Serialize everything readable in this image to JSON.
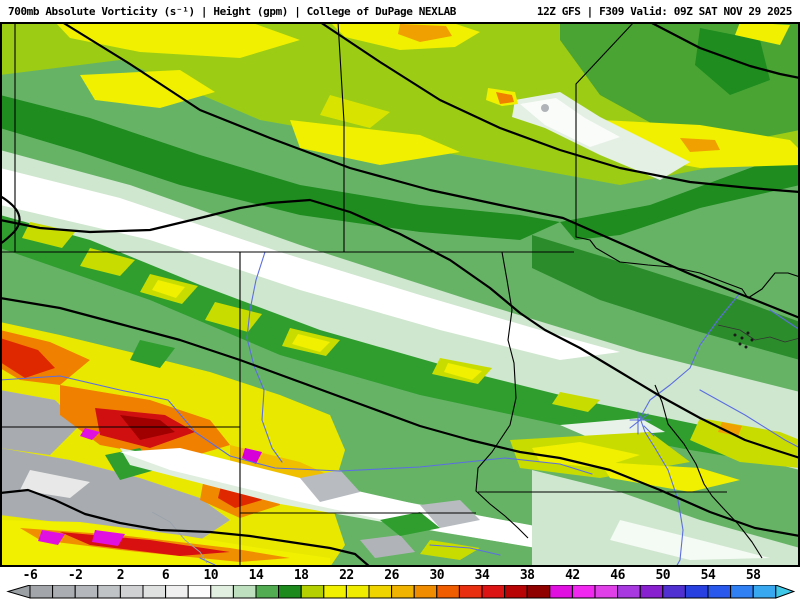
{
  "header": {
    "left_title": "700mb Absolute Vorticity (s⁻¹) | Height (gpm) | College of DuPage NEXLAB",
    "right_title": "12Z GFS | F309 Valid: 09Z SAT NOV 29 2025",
    "parameter": "700mb Absolute Vorticity (s⁻¹)",
    "overlay": "Height (gpm)",
    "source": "College of DuPage NEXLAB",
    "run": "12Z",
    "model": "GFS",
    "forecast_hour": "F309",
    "valid_time": "09Z SAT NOV 29 2025"
  },
  "colorbar": {
    "tick_labels": [
      "-6",
      "-2",
      "2",
      "6",
      "10",
      "14",
      "18",
      "22",
      "26",
      "30",
      "34",
      "38",
      "42",
      "46",
      "50",
      "54",
      "58"
    ],
    "tick_values": [
      -6,
      -2,
      2,
      6,
      10,
      14,
      18,
      22,
      26,
      30,
      34,
      38,
      42,
      46,
      50,
      54,
      58
    ],
    "left_arrow_color": "#9aa0a4",
    "right_arrow_color": "#40c8e8",
    "cells": [
      {
        "from": -6,
        "to": -4,
        "color": "#a2a6aa"
      },
      {
        "from": -4,
        "to": -2,
        "color": "#aaaeb2"
      },
      {
        "from": -2,
        "to": 0,
        "color": "#b4b8bc"
      },
      {
        "from": 0,
        "to": 2,
        "color": "#c0c3c6"
      },
      {
        "from": 2,
        "to": 4,
        "color": "#cfd1d3"
      },
      {
        "from": 4,
        "to": 6,
        "color": "#dfe1e1"
      },
      {
        "from": 6,
        "to": 8,
        "color": "#efefef"
      },
      {
        "from": 8,
        "to": 10,
        "color": "#fcfcfc"
      },
      {
        "from": 10,
        "to": 12,
        "color": "#e0efe0"
      },
      {
        "from": 12,
        "to": 14,
        "color": "#bfe0bf"
      },
      {
        "from": 14,
        "to": 16,
        "color": "#52ac52"
      },
      {
        "from": 16,
        "to": 18,
        "color": "#1d8a1d"
      },
      {
        "from": 18,
        "to": 20,
        "color": "#b5d000"
      },
      {
        "from": 20,
        "to": 22,
        "color": "#f0f000"
      },
      {
        "from": 22,
        "to": 24,
        "color": "#f0ec00"
      },
      {
        "from": 24,
        "to": 26,
        "color": "#f0d400"
      },
      {
        "from": 26,
        "to": 28,
        "color": "#f0b400"
      },
      {
        "from": 28,
        "to": 30,
        "color": "#f08c00"
      },
      {
        "from": 30,
        "to": 32,
        "color": "#f05c00"
      },
      {
        "from": 32,
        "to": 34,
        "color": "#e83010"
      },
      {
        "from": 34,
        "to": 36,
        "color": "#dc1414"
      },
      {
        "from": 36,
        "to": 38,
        "color": "#b80404"
      },
      {
        "from": 38,
        "to": 40,
        "color": "#8f0000"
      },
      {
        "from": 40,
        "to": 42,
        "color": "#e010e0"
      },
      {
        "from": 42,
        "to": 44,
        "color": "#f028f0"
      },
      {
        "from": 44,
        "to": 46,
        "color": "#e040e8"
      },
      {
        "from": 46,
        "to": 48,
        "color": "#a838e0"
      },
      {
        "from": 48,
        "to": 50,
        "color": "#8820d0"
      },
      {
        "from": 50,
        "to": 52,
        "color": "#5030d0"
      },
      {
        "from": 52,
        "to": 54,
        "color": "#2840e0"
      },
      {
        "from": 54,
        "to": 56,
        "color": "#2858ec"
      },
      {
        "from": 56,
        "to": 58,
        "color": "#3080f4"
      },
      {
        "from": 58,
        "to": 60,
        "color": "#38a8f0"
      }
    ]
  },
  "map": {
    "feature_colors": {
      "height_contour": "#000000",
      "state_border": "#000000",
      "river": "#5b6ee1",
      "frame": "#000000"
    }
  },
  "chart_data": {
    "type": "heatmap",
    "title": "700mb Absolute Vorticity (s⁻¹) | Height (gpm)",
    "legend_position": "bottom",
    "colorbar_ticks": [
      -6,
      -2,
      2,
      6,
      10,
      14,
      18,
      22,
      26,
      30,
      34,
      38,
      42,
      46,
      50,
      54,
      58
    ],
    "colorbar_range": [
      -8,
      60
    ],
    "colorbar_step": 2
  }
}
